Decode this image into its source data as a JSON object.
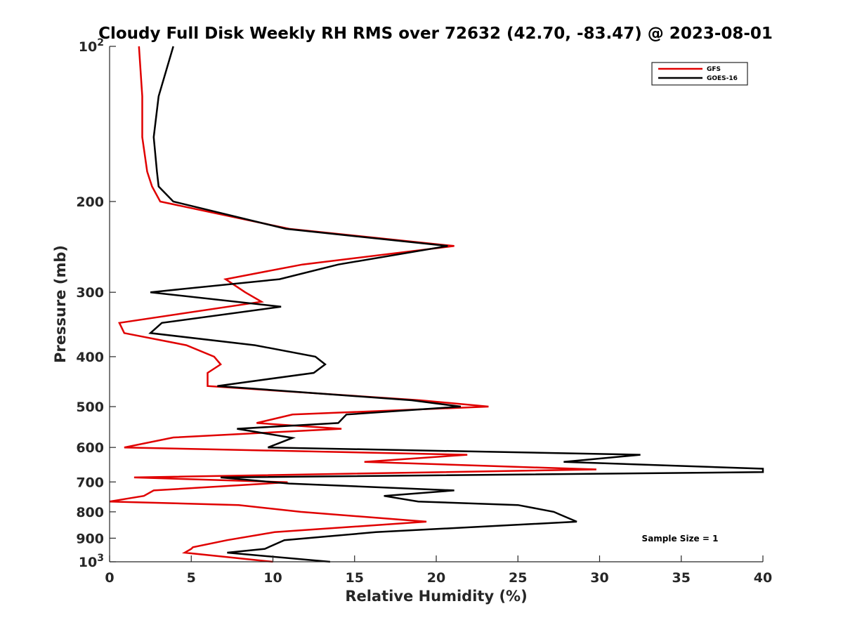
{
  "chart_data": {
    "type": "line",
    "title": "Cloudy Full Disk Weekly RH RMS over 72632 (42.70, -83.47) @ 2023-08-01",
    "xlabel": "Relative Humidity (%)",
    "ylabel": "Pressure (mb)",
    "xlim": [
      0,
      40
    ],
    "ylim": [
      100,
      1000
    ],
    "y_scale": "log",
    "y_reversed": true,
    "x_ticks": [
      0,
      5,
      10,
      15,
      20,
      25,
      30,
      35,
      40
    ],
    "x_tick_labels": [
      "0",
      "5",
      "10",
      "15",
      "20",
      "25",
      "30",
      "35",
      "40"
    ],
    "y_ticks": [
      100,
      200,
      300,
      400,
      500,
      600,
      700,
      800,
      900,
      1000
    ],
    "y_tick_labels": [
      {
        "base": "10",
        "exp": "2"
      },
      {
        "base": "200"
      },
      {
        "base": "300"
      },
      {
        "base": "400"
      },
      {
        "base": "500"
      },
      {
        "base": "600"
      },
      {
        "base": "700"
      },
      {
        "base": "800"
      },
      {
        "base": "900"
      },
      {
        "base": "10",
        "exp": "3"
      }
    ],
    "grid": false,
    "legend_position": "top-right",
    "annotation": "Sample Size = 1",
    "series": [
      {
        "name": "GFS",
        "color": "#e00000",
        "points": [
          [
            1.8,
            100
          ],
          [
            2.0,
            125
          ],
          [
            2.0,
            150
          ],
          [
            2.3,
            175
          ],
          [
            2.6,
            187
          ],
          [
            3.1,
            200
          ],
          [
            11.0,
            226
          ],
          [
            21.1,
            244
          ],
          [
            11.8,
            265
          ],
          [
            7.1,
            283
          ],
          [
            8.3,
            300
          ],
          [
            9.3,
            313
          ],
          [
            0.6,
            344
          ],
          [
            0.9,
            360
          ],
          [
            4.7,
            380
          ],
          [
            6.4,
            400
          ],
          [
            6.8,
            414
          ],
          [
            6.0,
            430
          ],
          [
            6.0,
            456
          ],
          [
            19.0,
            486
          ],
          [
            23.2,
            500
          ],
          [
            11.2,
            518
          ],
          [
            9.0,
            538
          ],
          [
            14.2,
            552
          ],
          [
            3.9,
            574
          ],
          [
            0.9,
            600
          ],
          [
            21.9,
            620
          ],
          [
            15.6,
            640
          ],
          [
            29.8,
            662
          ],
          [
            1.5,
            686
          ],
          [
            10.9,
            701
          ],
          [
            2.7,
            727
          ],
          [
            2.1,
            745
          ],
          [
            0.0,
            764
          ],
          [
            7.9,
            776
          ],
          [
            11.7,
            800
          ],
          [
            19.4,
            836
          ],
          [
            10.1,
            876
          ],
          [
            7.2,
            908
          ],
          [
            5.1,
            937
          ],
          [
            5.0,
            944
          ],
          [
            4.6,
            960
          ],
          [
            10.0,
            1000
          ]
        ]
      },
      {
        "name": "GOES-16",
        "color": "#000000",
        "points": [
          [
            3.9,
            100
          ],
          [
            3.0,
            125
          ],
          [
            2.7,
            150
          ],
          [
            2.9,
            175
          ],
          [
            3.0,
            187
          ],
          [
            3.9,
            200
          ],
          [
            10.8,
            226
          ],
          [
            20.7,
            244
          ],
          [
            14.0,
            265
          ],
          [
            10.4,
            283
          ],
          [
            2.5,
            300
          ],
          [
            10.5,
            320
          ],
          [
            3.2,
            344
          ],
          [
            2.5,
            360
          ],
          [
            8.9,
            380
          ],
          [
            12.6,
            400
          ],
          [
            13.2,
            414
          ],
          [
            12.5,
            430
          ],
          [
            6.6,
            456
          ],
          [
            18.5,
            486
          ],
          [
            21.5,
            500
          ],
          [
            14.5,
            518
          ],
          [
            14.0,
            538
          ],
          [
            7.8,
            552
          ],
          [
            11.2,
            575
          ],
          [
            9.7,
            600
          ],
          [
            32.5,
            620
          ],
          [
            27.8,
            640
          ],
          [
            40.0,
            660
          ],
          [
            40.0,
            670
          ],
          [
            6.8,
            686
          ],
          [
            11.0,
            705
          ],
          [
            21.1,
            727
          ],
          [
            16.8,
            745
          ],
          [
            18.9,
            764
          ],
          [
            25.0,
            776
          ],
          [
            27.2,
            800
          ],
          [
            27.5,
            808
          ],
          [
            28.6,
            836
          ],
          [
            16.3,
            876
          ],
          [
            10.7,
            908
          ],
          [
            9.5,
            944
          ],
          [
            7.2,
            960
          ],
          [
            13.5,
            1000
          ]
        ]
      }
    ]
  }
}
